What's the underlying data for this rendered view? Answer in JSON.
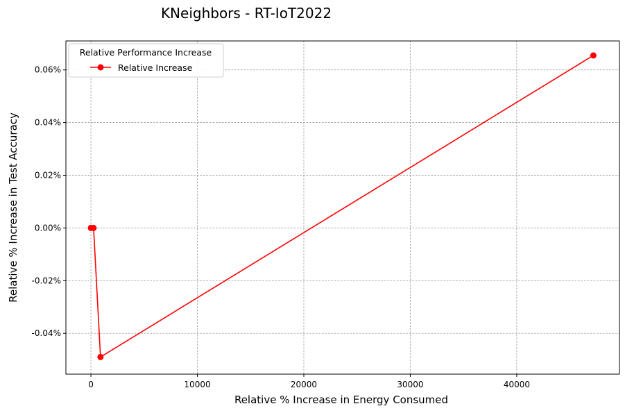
{
  "chart_data": {
    "type": "line",
    "title": "KNeighbors - RT-IoT2022",
    "xlabel": "Relative % Increase in Energy Consumed",
    "ylabel": "Relative % Increase in Test Accuracy",
    "xlim": [
      -2350,
      49650
    ],
    "ylim": [
      -0.0555,
      0.071
    ],
    "xticks": [
      0,
      10000,
      20000,
      30000,
      40000
    ],
    "xtick_labels": [
      "0",
      "10000",
      "20000",
      "30000",
      "40000"
    ],
    "yticks": [
      -0.04,
      -0.02,
      0.0,
      0.02,
      0.04,
      0.06
    ],
    "ytick_labels": [
      "-0.04%",
      "-0.02%",
      "0.00%",
      "0.02%",
      "0.04%",
      "0.06%"
    ],
    "grid": true,
    "legend": {
      "title": "Relative Performance Increase",
      "placement": "top-left"
    },
    "series": [
      {
        "name": "Relative Increase",
        "color": "#ff0000",
        "marker": "circle",
        "x": [
          0,
          250,
          900,
          47200
        ],
        "y": [
          0.0,
          0.0,
          -0.049,
          0.0655
        ]
      }
    ]
  }
}
